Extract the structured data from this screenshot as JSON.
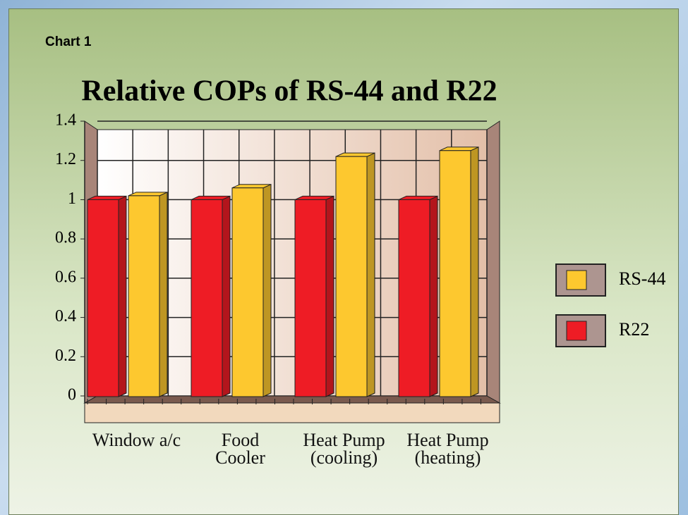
{
  "chart_data": {
    "type": "bar3d",
    "label": "Chart 1",
    "title": "Relative COPs of RS-44 and R22",
    "categories": [
      "Window a/c",
      "Food Cooler",
      "Heat Pump (cooling)",
      "Heat Pump (heating)"
    ],
    "series": [
      {
        "name": "R22",
        "color": "#ee1c25",
        "values": [
          1,
          1,
          1,
          1
        ]
      },
      {
        "name": "RS-44",
        "color": "#fdc82f",
        "values": [
          1.02,
          1.06,
          1.22,
          1.25
        ]
      }
    ],
    "ylim": [
      0,
      1.4
    ],
    "yticks": [
      0,
      0.2,
      0.4,
      0.6,
      0.8,
      1,
      1.2,
      1.4
    ],
    "grid": true,
    "legend": "right"
  }
}
